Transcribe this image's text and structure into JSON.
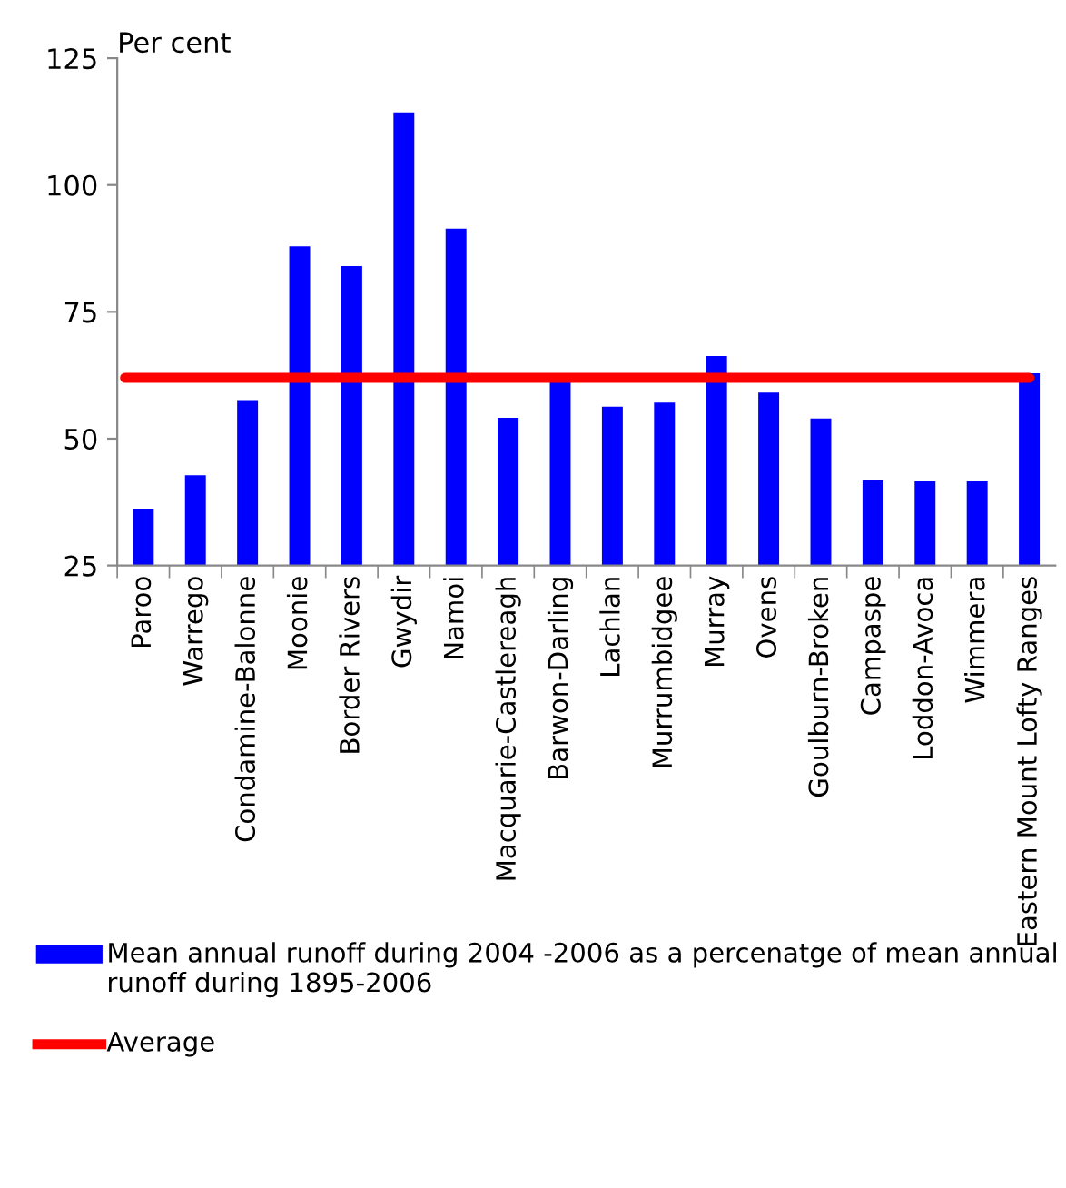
{
  "chart_data": {
    "type": "bar",
    "ylabel": "Per cent",
    "categories": [
      "Paroo",
      "Warrego",
      "Condamine-Balonne",
      "Moonie",
      "Border Rivers",
      "Gwydir",
      "Namoi",
      "Macquarie-Castlereagh",
      "Barwon-Darling",
      "Lachlan",
      "Murrumbidgee",
      "Murray",
      "Ovens",
      "Goulburn-Broken",
      "Campaspe",
      "Loddon-Avoca",
      "Wimmera",
      "Eastern Mount Lofty Ranges"
    ],
    "series": [
      {
        "name": "Mean annual runoff during 2004 -2006 as a percenatge of mean annual runoff during 1895-2006",
        "color": "#0000ff",
        "values": [
          36.2,
          42.8,
          57.6,
          87.9,
          84.0,
          114.3,
          91.4,
          54.1,
          61.4,
          56.3,
          57.1,
          66.3,
          59.1,
          54.0,
          41.8,
          41.6,
          41.6,
          62.9
        ]
      }
    ],
    "ref_lines": [
      {
        "axis": "y",
        "value": 62,
        "label": "Average",
        "color": "#ff0000"
      }
    ],
    "ylim": [
      25,
      125
    ],
    "yticks": [
      25,
      50,
      75,
      100,
      125
    ],
    "grid": false,
    "legend": "bottom"
  }
}
